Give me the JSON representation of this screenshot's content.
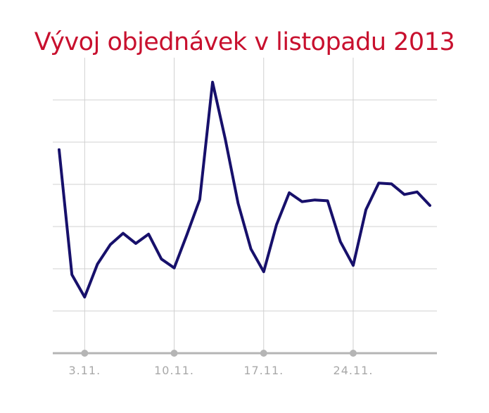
{
  "chart_data": {
    "type": "line",
    "title": "Vývoj objednávek v listopadu 2013",
    "xlabel": "",
    "ylabel": "",
    "x": [
      1,
      2,
      3,
      4,
      5,
      6,
      7,
      8,
      9,
      10,
      11,
      12,
      13,
      14,
      15,
      16,
      17,
      18,
      19,
      20,
      21,
      22,
      23,
      24,
      25,
      26,
      27,
      28,
      29,
      30
    ],
    "series": [
      {
        "values": [
          48.2,
          18.6,
          13.3,
          21.1,
          25.7,
          28.4,
          26.0,
          28.2,
          22.3,
          20.2,
          28.1,
          36.4,
          64.2,
          50.7,
          35.5,
          24.7,
          19.3,
          30.4,
          38.0,
          35.9,
          36.3,
          36.1,
          26.4,
          20.8,
          34.0,
          40.3,
          40.1,
          37.6,
          38.2,
          35.0
        ]
      }
    ],
    "xticks": [
      {
        "x": 3,
        "label": "3.11."
      },
      {
        "x": 10,
        "label": "10.11."
      },
      {
        "x": 17,
        "label": "17.11."
      },
      {
        "x": 24,
        "label": "24.11."
      }
    ],
    "xlim": [
      1,
      30
    ],
    "ylim": [
      0,
      70
    ],
    "ytick_step": 10,
    "ytick_labels": "none",
    "grid": true,
    "colors": {
      "title": "#c8102e",
      "line": "#17106b",
      "grid": "#d0d0d0",
      "axis": "#b5b5b5",
      "tick_marker": "#b5b5b5",
      "tick_label": "#a8a8a8"
    }
  }
}
